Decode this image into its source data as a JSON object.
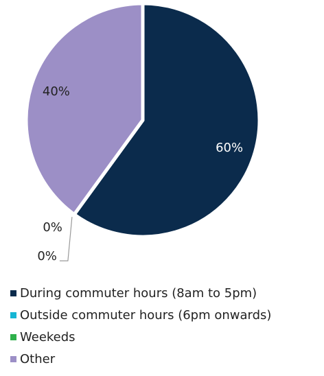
{
  "chart_data": {
    "type": "pie",
    "categories": [
      "During commuter hours (8am to 5pm)",
      "Outside commuter hours (6pm onwards)",
      "Weekeds",
      "Other"
    ],
    "values": [
      60,
      0,
      0,
      40
    ],
    "value_labels": [
      "60%",
      "0%",
      "0%",
      "40%"
    ],
    "colors": [
      "#0b2b4c",
      "#16b6d4",
      "#2eb04b",
      "#9c8fc6"
    ],
    "legend": "bottom"
  }
}
